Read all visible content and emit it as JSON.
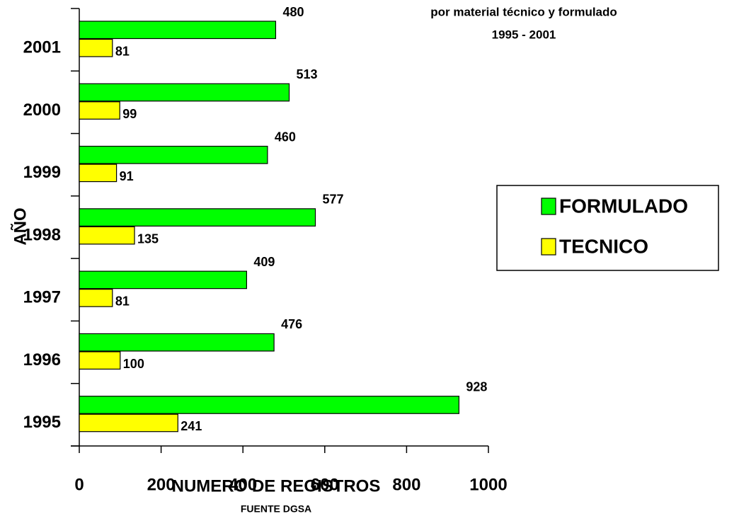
{
  "chart_data": {
    "type": "bar",
    "orientation": "horizontal",
    "title": "por material técnico y formulado",
    "subtitle": "1995 - 2001",
    "xlabel": "NUMERO DE REGISTROS",
    "ylabel": "AÑO",
    "note": "FUENTE DGSA",
    "categories": [
      "2001",
      "2000",
      "1999",
      "1998",
      "1997",
      "1996",
      "1995"
    ],
    "series": [
      {
        "name": "FORMULADO",
        "color": "#00ff00",
        "values": [
          480,
          513,
          460,
          577,
          409,
          476,
          928
        ]
      },
      {
        "name": "TECNICO",
        "color": "#ffff00",
        "values": [
          81,
          99,
          91,
          135,
          81,
          100,
          241
        ]
      }
    ],
    "xlim": [
      0,
      1000
    ],
    "xticks": [
      0,
      200,
      400,
      600,
      800,
      1000
    ],
    "grid": false,
    "legend": "right"
  }
}
